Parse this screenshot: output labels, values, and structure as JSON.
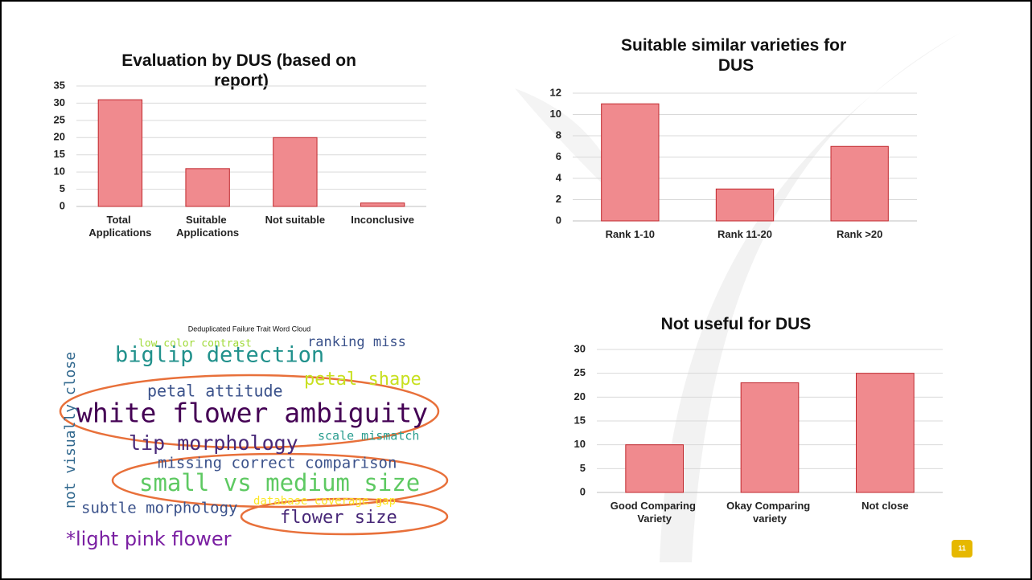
{
  "chart_data": [
    {
      "type": "bar",
      "title": "Evaluation by DUS (based on report)",
      "categories": [
        "Total Applications",
        "Suitable Applications",
        "Not suitable",
        "Inconclusive"
      ],
      "values": [
        31,
        11,
        20,
        1
      ],
      "color": "#f08a8e",
      "ylim": [
        0,
        35
      ],
      "yticks": [
        0,
        5,
        10,
        15,
        20,
        25,
        30,
        35
      ],
      "grid": true
    },
    {
      "type": "bar",
      "title": "Suitable similar varieties for DUS",
      "categories": [
        "Rank 1-10",
        "Rank 11-20",
        "Rank >20"
      ],
      "values": [
        11,
        3,
        7
      ],
      "color": "#f08a8e",
      "ylim": [
        0,
        12
      ],
      "yticks": [
        0,
        2,
        4,
        6,
        8,
        10,
        12
      ],
      "grid": true
    },
    {
      "type": "bar",
      "title": "Not useful for DUS",
      "categories": [
        "Good Comparing Variety",
        "Okay Comparing variety",
        "Not close"
      ],
      "values": [
        10,
        23,
        25
      ],
      "color": "#f08a8e",
      "ylim": [
        0,
        30
      ],
      "yticks": [
        0,
        5,
        10,
        15,
        20,
        25,
        30
      ],
      "grid": true
    }
  ],
  "word_cloud": {
    "title": "Deduplicated Failure Trait Word Cloud",
    "words": [
      "low color contrast",
      "ranking miss",
      "biglip detection",
      "petal shape",
      "petal attitude",
      "white flower ambiguity",
      "lip morphology",
      "scale mismatch",
      "missing correct comparison",
      "small vs medium size",
      "subtle morphology",
      "database coverage gap",
      "flower size",
      "not visually close"
    ]
  },
  "note": "*light pink flower",
  "page_number": "11"
}
